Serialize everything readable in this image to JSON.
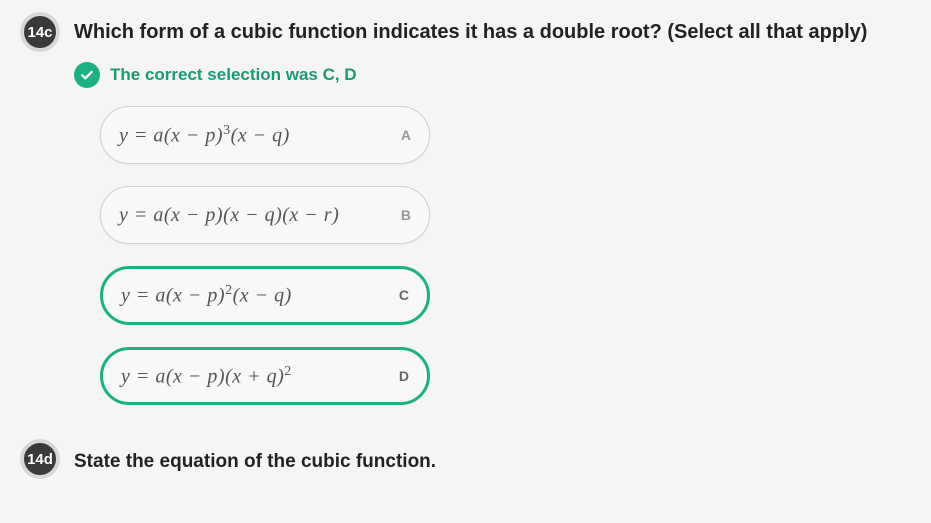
{
  "colors": {
    "badge_bg": "#3a3a3a",
    "badge_text": "#ffffff",
    "page_bg": "#f5f5f3",
    "question_text": "#222222",
    "feedback_green": "#1db082",
    "feedback_text": "#1a9a76",
    "option_border": "#d0d0ce",
    "option_bg": "#f8f8f7",
    "formula_text": "#555555",
    "letter_text": "#999999"
  },
  "fonts": {
    "body": "-apple-system, Segoe UI, Arial, sans-serif",
    "math": "Times New Roman, serif",
    "question_size_pt": 15,
    "formula_size_pt": 15,
    "feedback_size_pt": 13
  },
  "q14c": {
    "number": "14c",
    "prompt": "Which form of a cubic function indicates it has a double root? (Select all that apply)",
    "feedback": "The correct selection was C, D",
    "options": [
      {
        "letter": "A",
        "formula_html": "y = a(x − p)<sup>3</sup>(x − q)",
        "selected": false
      },
      {
        "letter": "B",
        "formula_html": "y = a(x − p)(x − q)(x − r)",
        "selected": false
      },
      {
        "letter": "C",
        "formula_html": "y = a(x − p)<sup>2</sup>(x − q)",
        "selected": true
      },
      {
        "letter": "D",
        "formula_html": "y = a(x − p)(x + q)<sup>2</sup>",
        "selected": true
      }
    ]
  },
  "q14d": {
    "number": "14d",
    "prompt": "State the equation of the cubic function."
  }
}
